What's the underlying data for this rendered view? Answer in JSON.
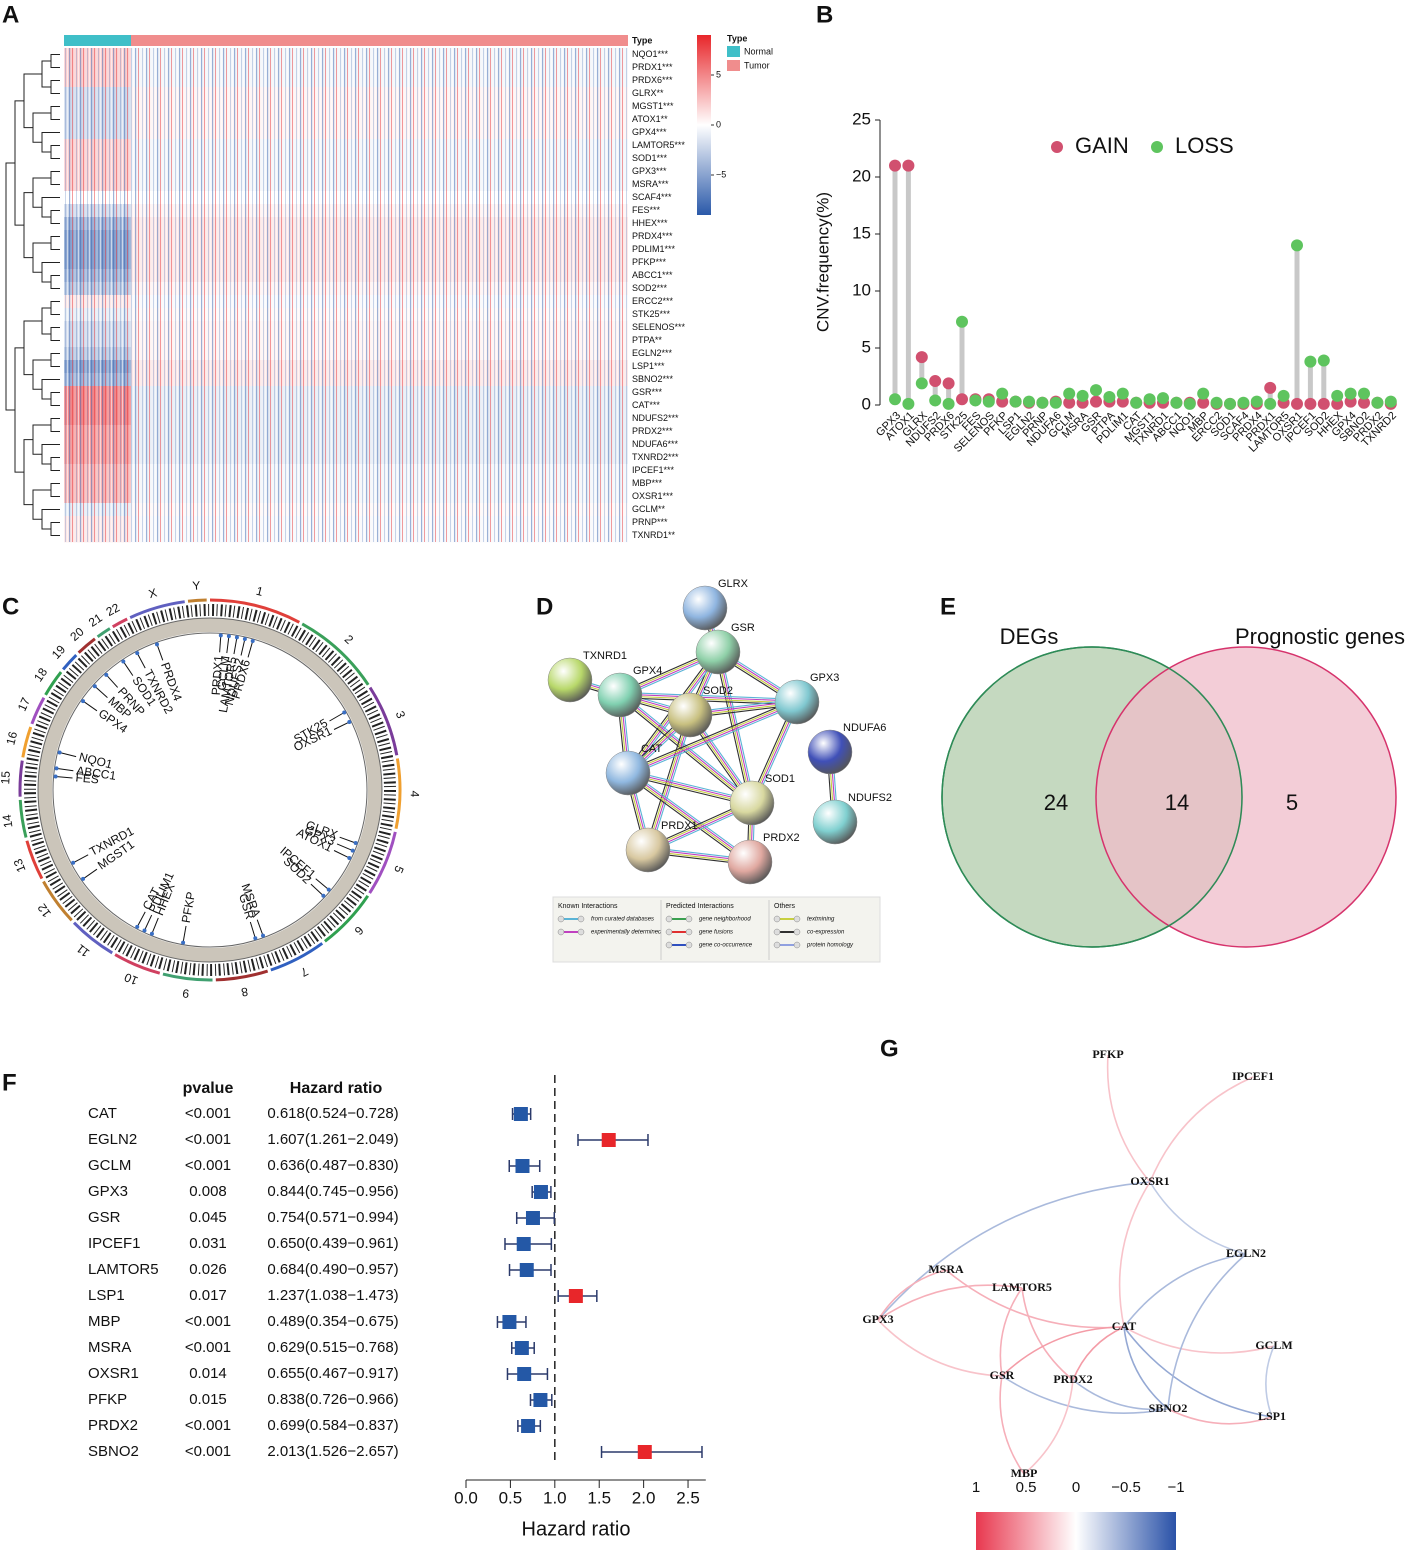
{
  "chart_data": [
    {
      "panel": "A",
      "type": "heatmap",
      "annotation_title": "Type",
      "groups": [
        {
          "name": "Normal",
          "color": "#3fbfc8"
        },
        {
          "name": "Tumor",
          "color": "#f08d8d"
        }
      ],
      "rows": [
        "NQO1***",
        "PRDX1***",
        "PRDX6***",
        "GLRX**",
        "MGST1***",
        "ATOX1**",
        "GPX4***",
        "LAMTOR5***",
        "SOD1***",
        "GPX3***",
        "MSRA***",
        "SCAF4***",
        "FES***",
        "HHEX***",
        "PRDX4***",
        "PDLIM1***",
        "PFKP***",
        "ABCC1***",
        "SOD2***",
        "ERCC2***",
        "STK25***",
        "SELENOS***",
        "PTPA**",
        "EGLN2***",
        "LSP1***",
        "SBNO2***",
        "GSR***",
        "CAT***",
        "NDUFS2***",
        "PRDX2***",
        "NDUFA6***",
        "TXNRD2***",
        "IPCEF1***",
        "MBP***",
        "OXSR1***",
        "GCLM**",
        "PRNP***",
        "TXNRD1**"
      ],
      "values": [
        [
          2,
          -0.5
        ],
        [
          2,
          -0.5
        ],
        [
          2,
          -0.5
        ],
        [
          -2,
          0.5
        ],
        [
          -2,
          0.5
        ],
        [
          -2,
          0.5
        ],
        [
          -2,
          0.5
        ],
        [
          2,
          -0.5
        ],
        [
          2,
          -0.5
        ],
        [
          2,
          -0.5
        ],
        [
          2,
          -0.5
        ],
        [
          0,
          0
        ],
        [
          -2,
          0.5
        ],
        [
          -4,
          1
        ],
        [
          -5,
          1
        ],
        [
          -5,
          1
        ],
        [
          -5,
          1
        ],
        [
          -4,
          1
        ],
        [
          -3,
          0.5
        ],
        [
          1,
          -0.3
        ],
        [
          -1,
          0.3
        ],
        [
          -2,
          0.5
        ],
        [
          -2,
          0.5
        ],
        [
          -3,
          0.5
        ],
        [
          -5,
          1
        ],
        [
          -4,
          1
        ],
        [
          5,
          -1
        ],
        [
          5,
          -1
        ],
        [
          5,
          -1
        ],
        [
          4,
          -1
        ],
        [
          4,
          -1
        ],
        [
          4,
          -1
        ],
        [
          3,
          -0.5
        ],
        [
          3,
          -0.5
        ],
        [
          3,
          -0.5
        ],
        [
          -1,
          0.3
        ],
        [
          1,
          -0.3
        ],
        [
          1,
          -0.3
        ]
      ],
      "colors": [
        "#2a59a9",
        "#ffffff",
        "#e8262a"
      ],
      "colorlim": [
        -9,
        9
      ],
      "colorticks": [
        5,
        0,
        {
          "value": -5,
          "label": "−5"
        }
      ]
    },
    {
      "panel": "B",
      "type": "lollipop",
      "ylabel": "CNV.frequency(%)",
      "categories": [
        "GPX3",
        "ATOX1",
        "GLRX",
        "NDUFS2",
        "PRDX6",
        "STK25",
        "FES",
        "SELENOS",
        "PFKP",
        "LSP1",
        "EGLN2",
        "PRNP",
        "NDUFA6",
        "GCLM",
        "MSRA",
        "GSR",
        "PTPA",
        "PDLIM1",
        "CAT",
        "MGST1",
        "TXNRD1",
        "ABCC1",
        "NQO1",
        "MBP",
        "ERCC2",
        "SOD1",
        "SCAF4",
        "PRDX4",
        "PRDX1",
        "LAMTOR5",
        "OXSR1",
        "IPCEF1",
        "SOD2",
        "HHEX",
        "GPX4",
        "SBNO2",
        "PRDX2",
        "TXNRD2"
      ],
      "series": [
        {
          "name": "GAIN",
          "color": "#d1506f",
          "values": [
            21,
            21,
            4.2,
            2.1,
            1.9,
            0.5,
            0.5,
            0.5,
            0.3,
            0.3,
            0.2,
            0.2,
            0.3,
            0.2,
            0.2,
            0.3,
            0.3,
            0.3,
            0.2,
            0.2,
            0.2,
            0.2,
            0.2,
            0.2,
            0.1,
            0.1,
            0.1,
            0.1,
            1.5,
            0.2,
            0.1,
            0.1,
            0.1,
            0.1,
            0.3,
            0.2,
            0.2,
            0.1
          ]
        },
        {
          "name": "LOSS",
          "color": "#5ec45e",
          "values": [
            0.5,
            0.1,
            1.9,
            0.4,
            0.1,
            7.3,
            0.4,
            0.3,
            1.0,
            0.3,
            0.3,
            0.2,
            0.2,
            1.0,
            0.8,
            1.3,
            0.7,
            1.0,
            0.2,
            0.5,
            0.6,
            0.2,
            0.1,
            1.0,
            0.2,
            0.1,
            0.2,
            0.3,
            0.1,
            0.8,
            14,
            3.8,
            3.9,
            0.8,
            1.0,
            1.0,
            0.2,
            0.3
          ]
        }
      ],
      "stem_color": "#c8c8c8",
      "ylim": [
        0,
        25
      ],
      "yticks": [
        0,
        5,
        10,
        15,
        20,
        25
      ],
      "legend": "top"
    },
    {
      "panel": "C",
      "type": "circos",
      "chromosomes": [
        "1",
        "2",
        "3",
        "4",
        "5",
        "6",
        "7",
        "8",
        "9",
        "10",
        "11",
        "12",
        "13",
        "14",
        "15",
        "16",
        "17",
        "18",
        "19",
        "20",
        "21",
        "22",
        "X",
        "Y"
      ],
      "genes": [
        "PRDX4",
        "PRDX1",
        "GCLM",
        "LAMTOR5",
        "NDUFS2",
        "PRDX6",
        "STK25",
        "OXSR1",
        "GLRX",
        "GPX3",
        "ATOX1",
        "IPCEF1",
        "SOD2",
        "MSRA",
        "GSR",
        "PFKP",
        "HHEX",
        "PDLIM1",
        "CAT",
        "MGST1",
        "TXNRD1",
        "FES",
        "ABCC1",
        "NQO1",
        "GPX4",
        "MBP",
        "PRNP",
        "SOD1",
        "TXNRD2"
      ]
    },
    {
      "panel": "D",
      "type": "network",
      "nodes": [
        "GLRX",
        "GSR",
        "TXNRD1",
        "GPX4",
        "SOD2",
        "GPX3",
        "NDUFA6",
        "CAT",
        "SOD1",
        "NDUFS2",
        "PRDX1",
        "PRDX2"
      ],
      "legend": [
        {
          "title": "Known Interactions",
          "items": [
            "from curated databases",
            "experimentally determined"
          ]
        },
        {
          "title": "Predicted Interactions",
          "items": [
            "gene neighborhood",
            "gene fusions",
            "gene co-occurrence"
          ]
        },
        {
          "title": "Others",
          "items": [
            "textmining",
            "co-expression",
            "protein homology"
          ]
        }
      ]
    },
    {
      "panel": "E",
      "type": "venn",
      "sets": [
        {
          "name": "DEGs",
          "color": "#c5d9c0",
          "stroke": "#2e8b57"
        },
        {
          "name": "Prognostic genes",
          "color": "#efbcca",
          "stroke": "#d6336c"
        }
      ],
      "counts": [
        24,
        14,
        5
      ]
    },
    {
      "panel": "F",
      "type": "forest",
      "columns": [
        "pvalue",
        "Hazard ratio"
      ],
      "categories": [
        "CAT",
        "EGLN2",
        "GCLM",
        "GPX3",
        "GSR",
        "IPCEF1",
        "LAMTOR5",
        "LSP1",
        "MBP",
        "MSRA",
        "OXSR1",
        "PFKP",
        "PRDX2",
        "SBNO2"
      ],
      "pvalues": [
        "<0.001",
        "<0.001",
        "<0.001",
        "0.008",
        "0.045",
        "0.031",
        "0.026",
        "0.017",
        "<0.001",
        "<0.001",
        "0.014",
        "0.015",
        "<0.001",
        "<0.001"
      ],
      "values": [
        0.618,
        1.607,
        0.636,
        0.844,
        0.754,
        0.65,
        0.684,
        1.237,
        0.489,
        0.629,
        0.655,
        0.838,
        0.699,
        2.013
      ],
      "lower": [
        0.524,
        1.261,
        0.487,
        0.745,
        0.571,
        0.439,
        0.49,
        1.038,
        0.354,
        0.515,
        0.467,
        0.726,
        0.584,
        1.526
      ],
      "upper": [
        0.728,
        2.049,
        0.83,
        0.956,
        0.994,
        0.961,
        0.957,
        1.473,
        0.675,
        0.768,
        0.917,
        0.966,
        0.837,
        2.657
      ],
      "value_labels": [
        "0.618(0.524−0.728)",
        "1.607(1.261−2.049)",
        "0.636(0.487−0.830)",
        "0.844(0.745−0.956)",
        "0.754(0.571−0.994)",
        "0.650(0.439−0.961)",
        "0.684(0.490−0.957)",
        "1.237(1.038−1.473)",
        "0.489(0.354−0.675)",
        "0.629(0.515−0.768)",
        "0.655(0.467−0.917)",
        "0.838(0.726−0.966)",
        "0.699(0.584−0.837)",
        "2.013(1.526−2.657)"
      ],
      "xlabel": "Hazard ratio",
      "xlim": [
        0,
        2.7
      ],
      "xticks": [
        {
          "value": 0,
          "label": "0.0"
        },
        0.5,
        {
          "value": 1,
          "label": "1.0"
        },
        1.5,
        {
          "value": 2,
          "label": "2.0"
        },
        2.5
      ],
      "reference": 1,
      "color_above": "#e8262a",
      "color_below": "#2458a6"
    },
    {
      "panel": "G",
      "type": "correlation_network",
      "nodes": [
        "PFKP",
        "IPCEF1",
        "OXSR1",
        "EGLN2",
        "MSRA",
        "LAMTOR5",
        "GPX3",
        "CAT",
        "GCLM",
        "GSR",
        "PRDX2",
        "SBNO2",
        "LSP1",
        "MBP"
      ],
      "edges": [
        {
          "source": "PFKP",
          "target": "OXSR1",
          "value": 0.3
        },
        {
          "source": "IPCEF1",
          "target": "OXSR1",
          "value": 0.3
        },
        {
          "source": "OXSR1",
          "target": "GPX3",
          "value": -0.4
        },
        {
          "source": "OXSR1",
          "target": "EGLN2",
          "value": -0.3
        },
        {
          "source": "OXSR1",
          "target": "CAT",
          "value": 0.3
        },
        {
          "source": "MSRA",
          "target": "CAT",
          "value": 0.4
        },
        {
          "source": "MSRA",
          "target": "GPX3",
          "value": 0.4
        },
        {
          "source": "LAMTOR5",
          "target": "GPX3",
          "value": 0.4
        },
        {
          "source": "LAMTOR5",
          "target": "GSR",
          "value": 0.4
        },
        {
          "source": "LAMTOR5",
          "target": "PRDX2",
          "value": 0.4
        },
        {
          "source": "GPX3",
          "target": "GSR",
          "value": 0.3
        },
        {
          "source": "GSR",
          "target": "MBP",
          "value": 0.4
        },
        {
          "source": "CAT",
          "target": "GSR",
          "value": 0.5
        },
        {
          "source": "CAT",
          "target": "PRDX2",
          "value": 0.5
        },
        {
          "source": "CAT",
          "target": "GCLM",
          "value": 0.3
        },
        {
          "source": "CAT",
          "target": "SBNO2",
          "value": -0.5
        },
        {
          "source": "CAT",
          "target": "LSP1",
          "value": -0.5
        },
        {
          "source": "EGLN2",
          "target": "CAT",
          "value": -0.4
        },
        {
          "source": "EGLN2",
          "target": "SBNO2",
          "value": -0.4
        },
        {
          "source": "GCLM",
          "target": "LSP1",
          "value": -0.3
        },
        {
          "source": "GSR",
          "target": "SBNO2",
          "value": -0.4
        },
        {
          "source": "PRDX2",
          "target": "SBNO2",
          "value": -0.4
        },
        {
          "source": "SBNO2",
          "target": "LSP1",
          "value": 0.4
        },
        {
          "source": "MBP",
          "target": "PRDX2",
          "value": 0.3
        }
      ],
      "colors": [
        "#e8384f",
        "#ffffff",
        "#2a52a8"
      ],
      "colorlim": [
        1,
        -1
      ],
      "colorticks": [
        1,
        0.5,
        0,
        {
          "value": -0.5,
          "label": "−0.5"
        },
        {
          "value": -1,
          "label": "−1"
        }
      ]
    }
  ]
}
